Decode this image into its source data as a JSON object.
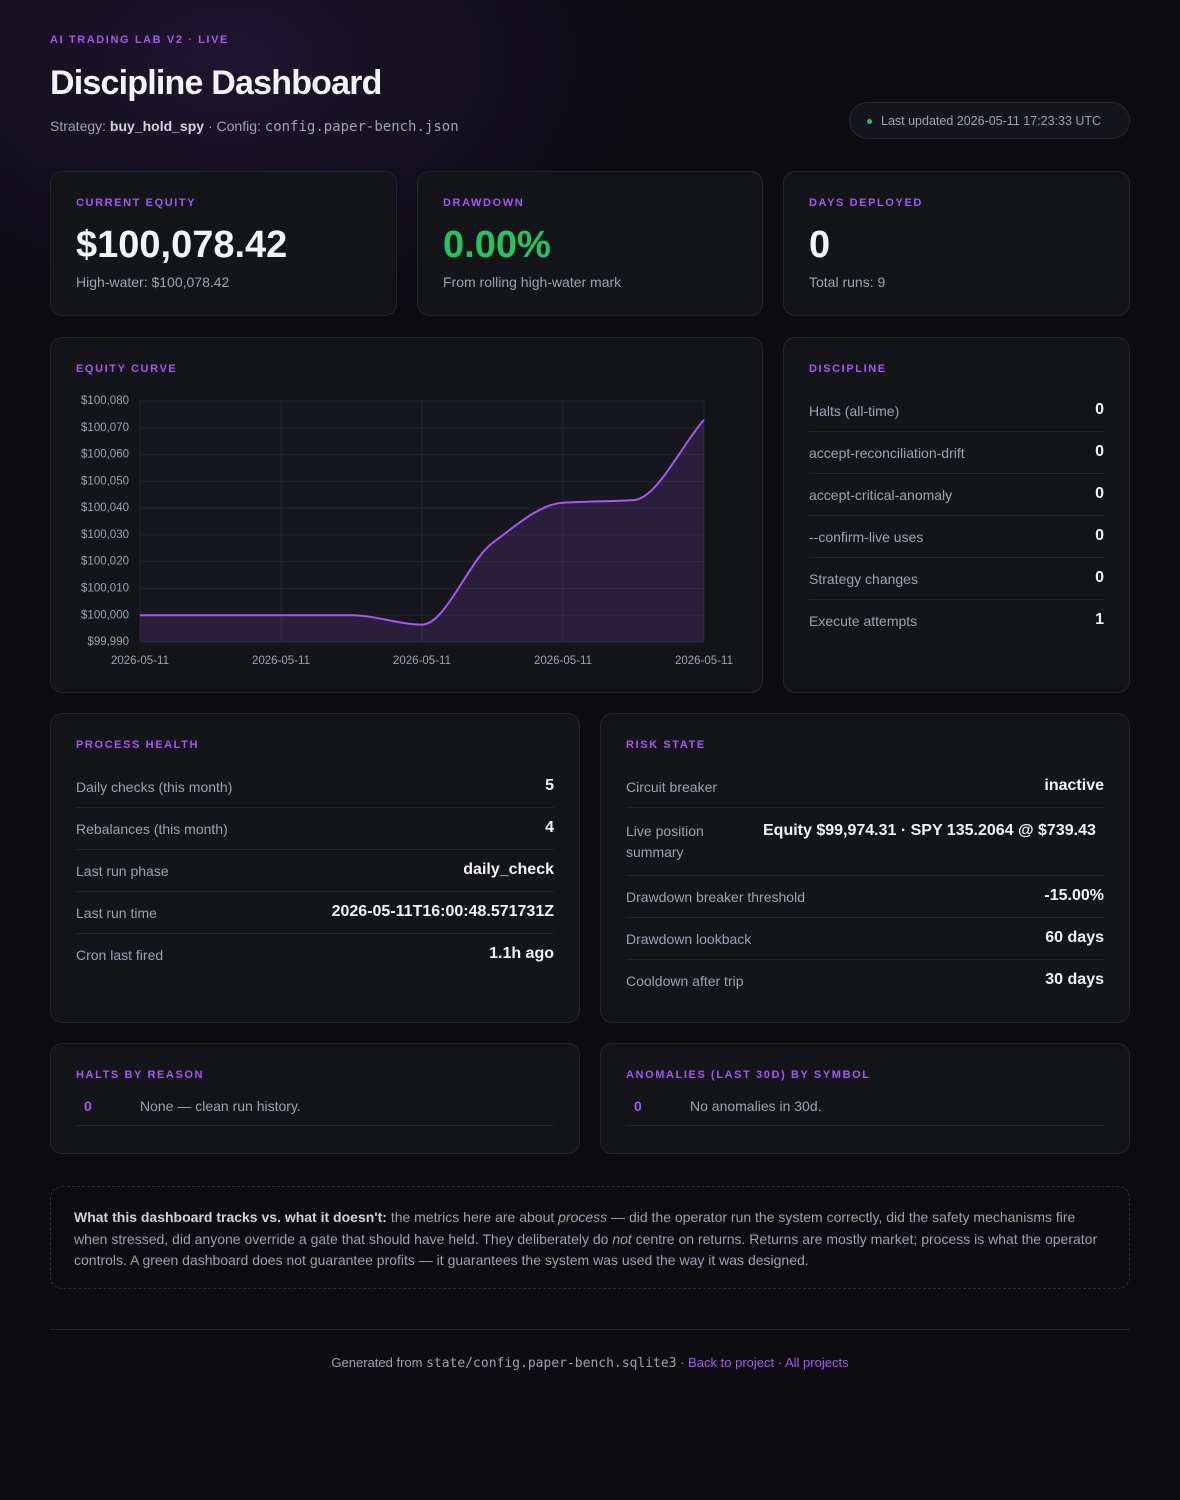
{
  "header": {
    "eyebrow": "AI TRADING LAB V2 · LIVE",
    "title": "Discipline Dashboard",
    "strategy_label": "Strategy:",
    "strategy": "buy_hold_spy",
    "config_label": "· Config:",
    "config": "config.paper-bench.json",
    "updated": "Last updated 2026-05-11 17:23:33 UTC"
  },
  "cards": [
    {
      "label": "CURRENT EQUITY",
      "value": "$100,078.42",
      "sub": "High-water: $100,078.42"
    },
    {
      "label": "DRAWDOWN",
      "value": "0.00%",
      "sub": "From rolling high-water mark"
    },
    {
      "label": "DAYS DEPLOYED",
      "value": "0",
      "sub": "Total runs: 9"
    }
  ],
  "chart_data": {
    "type": "line",
    "title": "EQUITY CURVE",
    "categories": [
      "2026-05-11",
      null,
      "2026-05-11",
      null,
      "2026-05-11",
      null,
      "2026-05-11",
      null,
      "2026-05-11"
    ],
    "series": [
      {
        "name": "Equity",
        "color": "#a855f7",
        "values": [
          100000,
          100000,
          100000,
          100000,
          99996.5,
          100027,
          100042,
          100043,
          100073
        ]
      }
    ],
    "ylim": [
      99990,
      100080
    ],
    "yticks": [
      {
        "value": 99990,
        "label": "$99,990"
      },
      {
        "value": 100000,
        "label": "$100,000"
      },
      {
        "value": 100010,
        "label": "$100,010"
      },
      {
        "value": 100020,
        "label": "$100,020"
      },
      {
        "value": 100030,
        "label": "$100,030"
      },
      {
        "value": 100040,
        "label": "$100,040"
      },
      {
        "value": 100050,
        "label": "$100,050"
      },
      {
        "value": 100060,
        "label": "$100,060"
      },
      {
        "value": 100070,
        "label": "$100,070"
      },
      {
        "value": 100080,
        "label": "$100,080"
      }
    ],
    "grid": true
  },
  "discipline": {
    "title": "DISCIPLINE",
    "rows": [
      [
        "Halts (all-time)",
        "0"
      ],
      [
        "accept-reconciliation-drift",
        "0"
      ],
      [
        "accept-critical-anomaly",
        "0"
      ],
      [
        "--confirm-live uses",
        "0"
      ],
      [
        "Strategy changes",
        "0"
      ],
      [
        "Execute attempts",
        "1"
      ]
    ]
  },
  "process": {
    "title": "PROCESS HEALTH",
    "rows": [
      [
        "Daily checks (this month)",
        "5"
      ],
      [
        "Rebalances (this month)",
        "4"
      ],
      [
        "Last run phase",
        "daily_check"
      ],
      [
        "Last run time",
        "2026-05-11T16:00:48.571731Z"
      ],
      [
        "Cron last fired",
        "1.1h ago"
      ]
    ]
  },
  "risk": {
    "title": "RISK STATE",
    "rows": [
      [
        "Circuit breaker",
        "inactive"
      ],
      [
        "Live position summary",
        "Equity $99,974.31 · SPY 135.2064 @ $739.43"
      ],
      [
        "Drawdown breaker threshold",
        "-15.00%"
      ],
      [
        "Drawdown lookback",
        "60 days"
      ],
      [
        "Cooldown after trip",
        "30 days"
      ]
    ]
  },
  "halts": {
    "title": "HALTS BY REASON",
    "count": "0",
    "text": "None — clean run history."
  },
  "anomalies": {
    "title": "ANOMALIES (LAST 30D) BY SYMBOL",
    "count": "0",
    "text": "No anomalies in 30d."
  },
  "note": {
    "bold": "What this dashboard tracks vs. what it doesn't:",
    "t1": " the metrics here are about ",
    "i1": "process",
    "t2": " — did the operator run the system correctly, did the safety mechanisms fire when stressed, did anyone override a gate that should have held. They deliberately do ",
    "i2": "not",
    "t3": " centre on returns. Returns are mostly market; process is what the operator controls. A green dashboard does not guarantee profits — it guarantees the system was used the way it was designed."
  },
  "footer": {
    "generated": "Generated from",
    "path": "state/config.paper-bench.sqlite3",
    "sep1": "·",
    "link1": "Back to project",
    "sep2": "·",
    "link2": "All projects"
  }
}
